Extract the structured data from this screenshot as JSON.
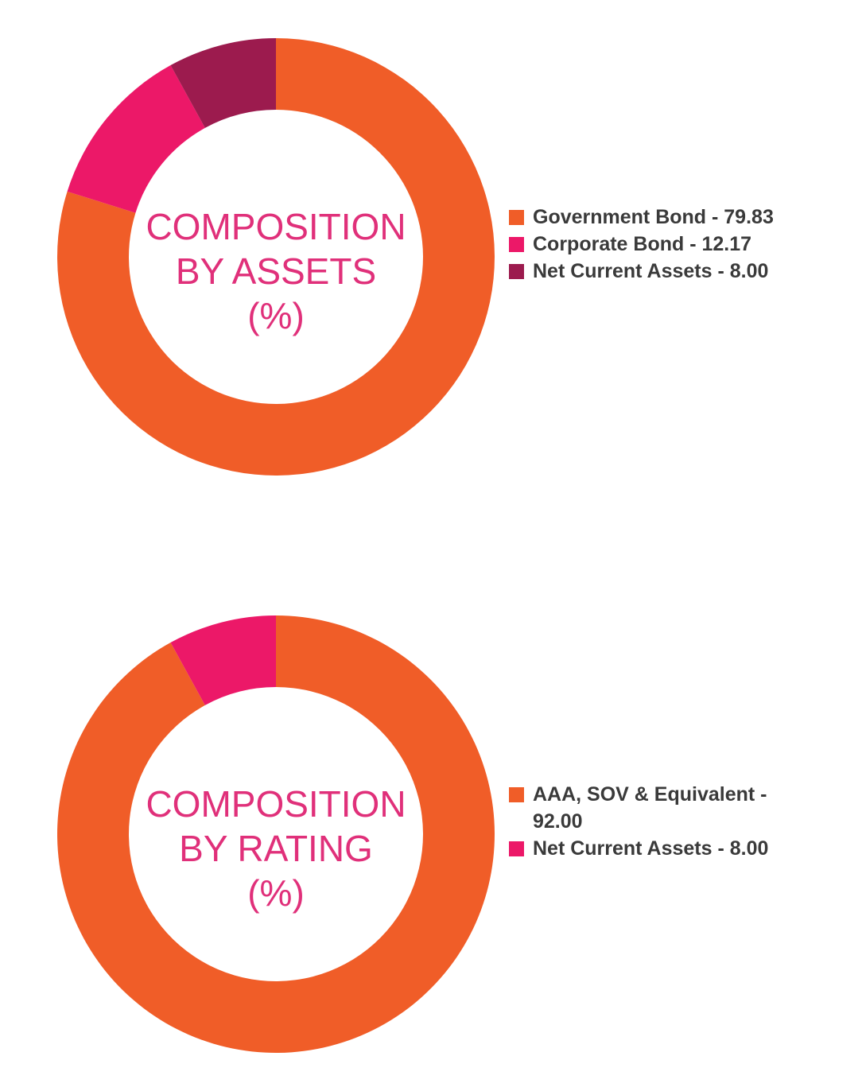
{
  "chart_data": [
    {
      "type": "pie",
      "title_lines": [
        "COMPOSITION",
        "BY ASSETS",
        "(%)"
      ],
      "categories": [
        "Government Bond",
        "Corporate Bond",
        "Net Current Assets"
      ],
      "values": [
        79.83,
        12.17,
        8.0
      ],
      "colors": [
        "#f05d28",
        "#ec1868",
        "#9c1b4e"
      ],
      "legend_labels": [
        "Government Bond - 79.83",
        "Corporate Bond - 12.17",
        "Net Current Assets - 8.00"
      ],
      "legend_position": "right"
    },
    {
      "type": "pie",
      "title_lines": [
        "COMPOSITION",
        "BY RATING",
        "(%)"
      ],
      "categories": [
        "AAA, SOV & Equivalent",
        "Net Current Assets"
      ],
      "values": [
        92.0,
        8.0
      ],
      "colors": [
        "#f05d28",
        "#ec1868"
      ],
      "legend_labels": [
        "AAA, SOV & Equivalent - 92.00",
        "Net Current Assets - 8.00"
      ],
      "legend_position": "right"
    }
  ]
}
